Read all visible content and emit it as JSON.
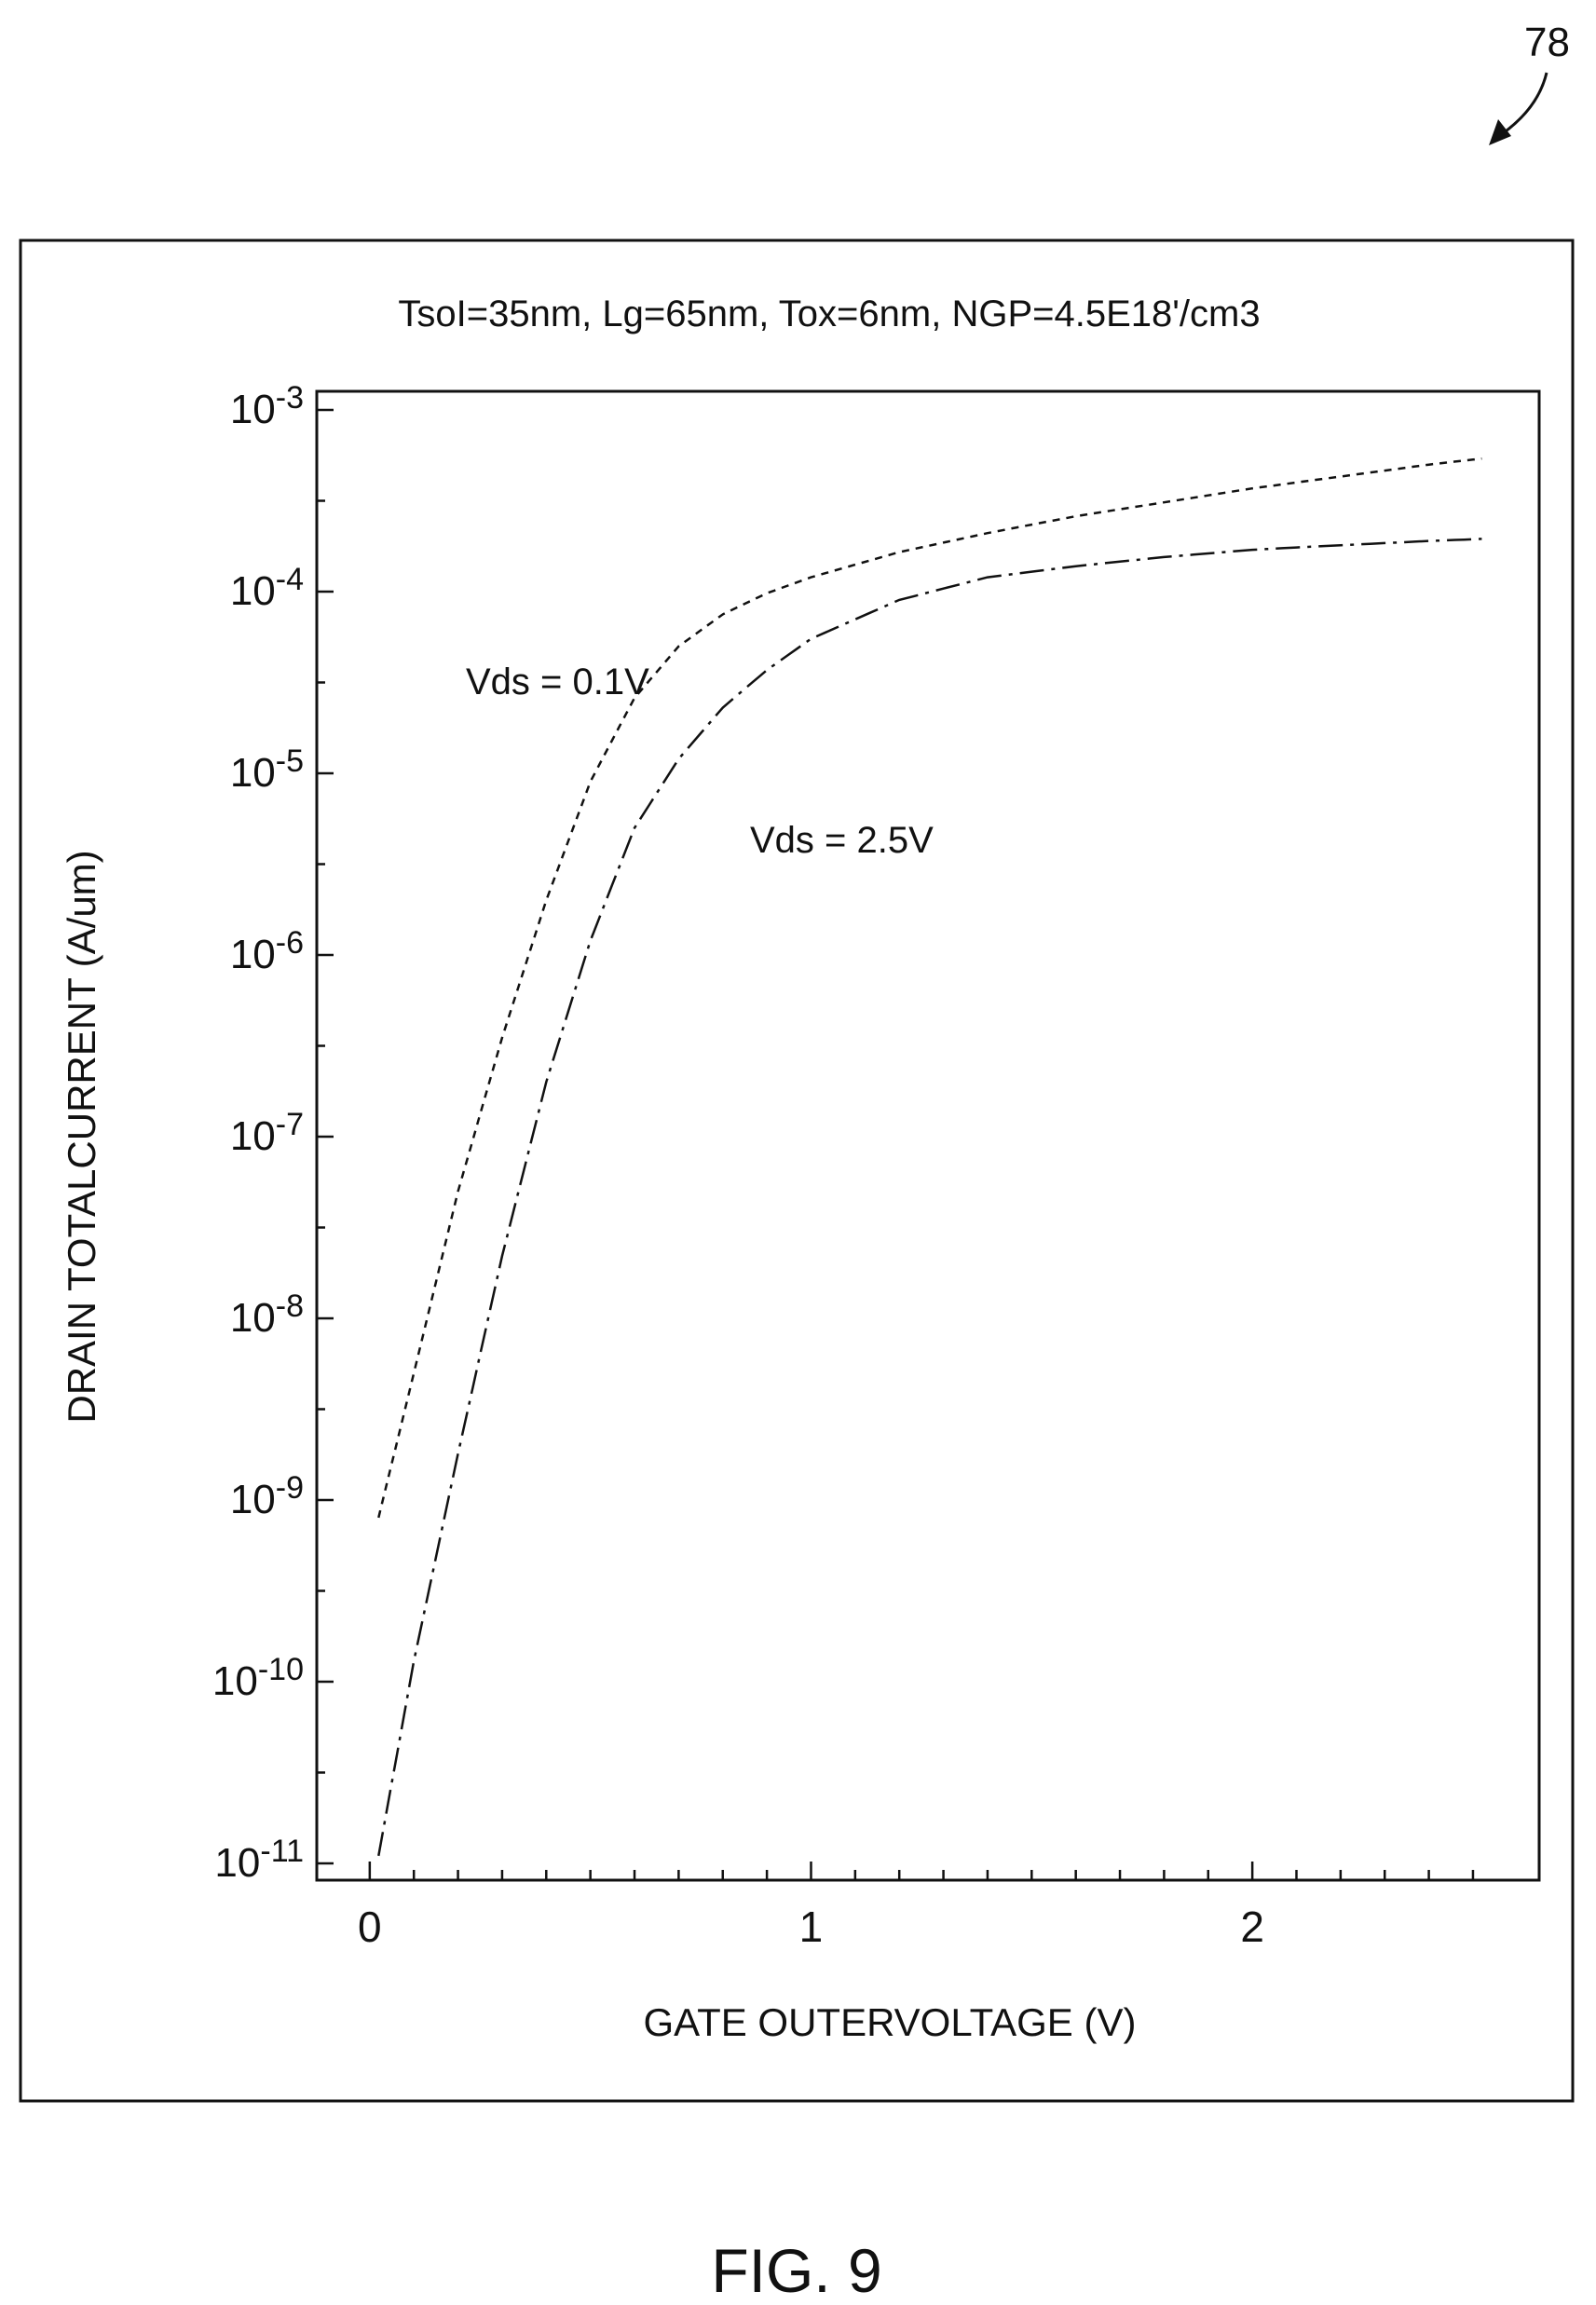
{
  "figure": {
    "ref_number": "78",
    "caption": "FIG. 9"
  },
  "chart_data": {
    "type": "line",
    "title": "TsoI=35nm, Lg=65nm, Tox=6nm, NGP=4.5E18'/cm3",
    "xlabel": "GATE OUTERVOLTAGE (V)",
    "ylabel": "DRAIN TOTALCURRENT (A/um)",
    "yscale": "log",
    "xlim": [
      -0.12,
      2.65
    ],
    "ylim": [
      1e-11,
      0.001
    ],
    "x_ticks": [
      {
        "value": 0,
        "label": "0"
      },
      {
        "value": 1,
        "label": "1"
      },
      {
        "value": 2,
        "label": "2"
      }
    ],
    "y_ticks": [
      {
        "value": 0.001,
        "base": "10",
        "exp": "-3"
      },
      {
        "value": 0.0001,
        "base": "10",
        "exp": "-4"
      },
      {
        "value": 1e-05,
        "base": "10",
        "exp": "-5"
      },
      {
        "value": 1e-06,
        "base": "10",
        "exp": "-6"
      },
      {
        "value": 1e-07,
        "base": "10",
        "exp": "-7"
      },
      {
        "value": 1e-08,
        "base": "10",
        "exp": "-8"
      },
      {
        "value": 1e-09,
        "base": "10",
        "exp": "-9"
      },
      {
        "value": 1e-10,
        "base": "10",
        "exp": "-10"
      },
      {
        "value": 1e-11,
        "base": "10",
        "exp": "-11"
      }
    ],
    "grid": false,
    "series": [
      {
        "name": "Vds = 0.1V",
        "dash": "short-dash",
        "points": [
          [
            0.02,
            8e-10
          ],
          [
            0.1,
            5e-09
          ],
          [
            0.2,
            5e-08
          ],
          [
            0.3,
            3.5e-07
          ],
          [
            0.4,
            2e-06
          ],
          [
            0.5,
            9e-06
          ],
          [
            0.6,
            2.6e-05
          ],
          [
            0.7,
            5e-05
          ],
          [
            0.8,
            7.5e-05
          ],
          [
            0.9,
            9.8e-05
          ],
          [
            1.0,
            0.00012
          ],
          [
            1.2,
            0.000165
          ],
          [
            1.4,
            0.00021
          ],
          [
            1.6,
            0.00026
          ],
          [
            1.8,
            0.00031
          ],
          [
            2.0,
            0.00037
          ],
          [
            2.2,
            0.00043
          ],
          [
            2.4,
            0.0005
          ],
          [
            2.52,
            0.00054
          ]
        ]
      },
      {
        "name": "Vds = 2.5V",
        "dash": "dash-dot",
        "points": [
          [
            0.02,
            1.1e-11
          ],
          [
            0.1,
            1.3e-10
          ],
          [
            0.2,
            1.8e-09
          ],
          [
            0.3,
            2.2e-08
          ],
          [
            0.4,
            2e-07
          ],
          [
            0.5,
            1.2e-06
          ],
          [
            0.6,
            5e-06
          ],
          [
            0.7,
            1.2e-05
          ],
          [
            0.8,
            2.3e-05
          ],
          [
            0.9,
            3.7e-05
          ],
          [
            1.0,
            5.5e-05
          ],
          [
            1.2,
            9e-05
          ],
          [
            1.4,
            0.00012
          ],
          [
            1.6,
            0.000138
          ],
          [
            1.8,
            0.000155
          ],
          [
            2.0,
            0.00017
          ],
          [
            2.2,
            0.00018
          ],
          [
            2.4,
            0.00019
          ],
          [
            2.52,
            0.000195
          ]
        ]
      }
    ],
    "annotations": [
      {
        "text": "Vds = 0.1V",
        "series": 0
      },
      {
        "text": "Vds = 2.5V",
        "series": 1
      }
    ]
  }
}
